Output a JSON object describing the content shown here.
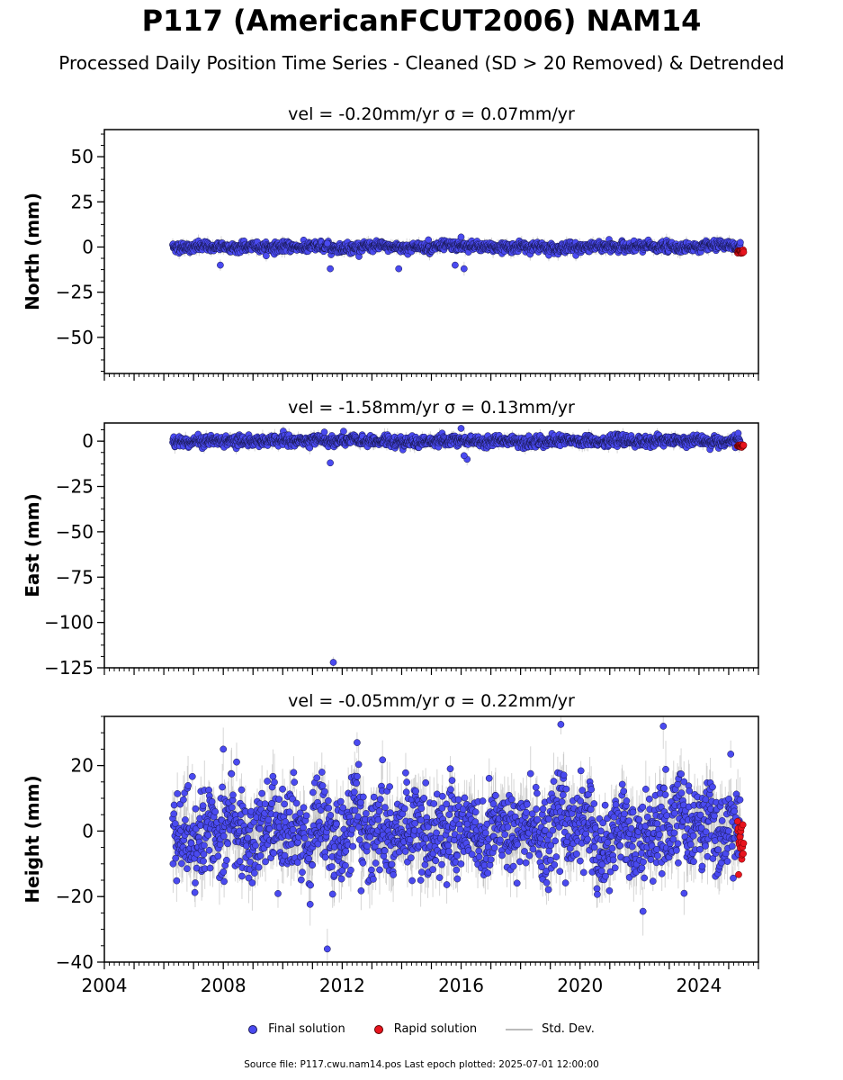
{
  "title": "P117 (AmericanFCUT2006) NAM14",
  "subtitle": "Processed Daily Position Time Series - Cleaned (SD > 20 Removed) & Detrended",
  "colors": {
    "final": "#4a4af0",
    "rapid": "#e8141e",
    "stddev": "#b4b4b4"
  },
  "legend": {
    "final": "Final solution",
    "rapid": "Rapid solution",
    "stddev": "Std. Dev."
  },
  "source": "Source file: P117.cwu.nam14.pos  Last epoch plotted: 2025-07-01 12:00:00",
  "chart_data": [
    {
      "type": "scatter",
      "title": "vel = -0.20mm/yr   σ = 0.07mm/yr",
      "ylabel": "North (mm)",
      "xlim": [
        2004,
        2026
      ],
      "ylim": [
        -70,
        65
      ],
      "yticks": [
        -50,
        -25,
        0,
        25,
        50
      ],
      "yticklabels": [
        "−50",
        "−25",
        "0",
        "25",
        "50"
      ],
      "data_span": [
        2006.3,
        2025.4
      ],
      "rapid_span": [
        2025.3,
        2025.5
      ],
      "noise_sd": 1.3,
      "stddev_band": 3,
      "excursions": [
        [
          2007.9,
          -10
        ],
        [
          2011.6,
          -12
        ],
        [
          2011.5,
          2
        ],
        [
          2013.9,
          -12
        ],
        [
          2014.9,
          4
        ],
        [
          2016.0,
          5.5
        ],
        [
          2016.1,
          -12
        ],
        [
          2015.8,
          -10
        ]
      ]
    },
    {
      "type": "scatter",
      "title": "vel = -1.58mm/yr   σ = 0.13mm/yr",
      "ylabel": "East (mm)",
      "xlim": [
        2004,
        2026
      ],
      "ylim": [
        -125,
        10
      ],
      "yticks": [
        -125,
        -100,
        -75,
        -50,
        -25,
        0
      ],
      "yticklabels": [
        "−125",
        "−100",
        "−75",
        "−50",
        "−25",
        "0"
      ],
      "data_span": [
        2006.3,
        2025.4
      ],
      "rapid_span": [
        2025.3,
        2025.5
      ],
      "noise_sd": 1.4,
      "stddev_band": 3,
      "excursions": [
        [
          2011.7,
          -122
        ],
        [
          2011.6,
          -12
        ],
        [
          2011.4,
          5
        ],
        [
          2016.0,
          7
        ],
        [
          2016.2,
          -10
        ],
        [
          2016.1,
          -8
        ]
      ]
    },
    {
      "type": "scatter",
      "title": "vel = -0.05mm/yr   σ = 0.22mm/yr",
      "ylabel": "Height (mm)",
      "xlim": [
        2004,
        2026
      ],
      "ylim": [
        -40,
        35
      ],
      "yticks": [
        -40,
        -20,
        0,
        20
      ],
      "yticklabels": [
        "−40",
        "−20",
        "0",
        "20"
      ],
      "xticks": [
        2004,
        2008,
        2012,
        2016,
        2020,
        2024
      ],
      "data_span": [
        2006.3,
        2025.4
      ],
      "rapid_span": [
        2025.3,
        2025.5
      ],
      "noise_sd": 6.5,
      "seasonal_amp": 3,
      "stddev_band": 7,
      "excursions": [
        [
          2011.5,
          -36
        ],
        [
          2022.8,
          32
        ],
        [
          2012.5,
          27
        ],
        [
          2008.0,
          25
        ],
        [
          2023.5,
          -19
        ]
      ]
    }
  ]
}
